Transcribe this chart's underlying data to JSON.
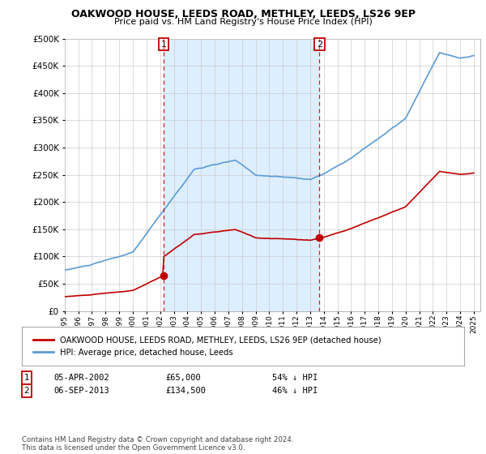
{
  "title": "OAKWOOD HOUSE, LEEDS ROAD, METHLEY, LEEDS, LS26 9EP",
  "subtitle": "Price paid vs. HM Land Registry's House Price Index (HPI)",
  "legend_line1": "OAKWOOD HOUSE, LEEDS ROAD, METHLEY, LEEDS, LS26 9EP (detached house)",
  "legend_line2": "HPI: Average price, detached house, Leeds",
  "footnote": "Contains HM Land Registry data © Crown copyright and database right 2024.\nThis data is licensed under the Open Government Licence v3.0.",
  "ylim": [
    0,
    500000
  ],
  "yticks": [
    0,
    50000,
    100000,
    150000,
    200000,
    250000,
    300000,
    350000,
    400000,
    450000,
    500000
  ],
  "sale1_t": 2002.27,
  "sale1_price": 65000,
  "sale2_t": 2013.67,
  "sale2_price": 134500,
  "hpi_color": "#5b9bd5",
  "price_color": "#c00000",
  "shade_color": "#ddeeff",
  "background_color": "#ffffff",
  "grid_color": "#cccccc"
}
